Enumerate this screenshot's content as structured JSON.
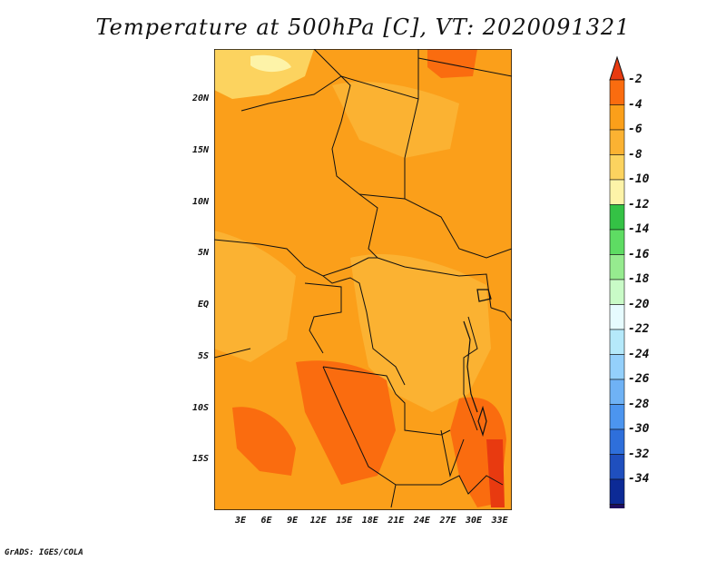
{
  "title": "Temperature at 500hPa [C], VT: 2020091321",
  "footer": "GrADS: IGES/COLA",
  "map": {
    "lat_labels": [
      "20N",
      "15N",
      "10N",
      "5N",
      "EQ",
      "5S",
      "10S",
      "15S"
    ],
    "lon_labels": [
      "3E",
      "6E",
      "9E",
      "12E",
      "15E",
      "18E",
      "21E",
      "24E",
      "27E",
      "30E",
      "33E"
    ],
    "lat_values": [
      20,
      15,
      10,
      5,
      0,
      -5,
      -10,
      -15
    ],
    "lon_values": [
      3,
      6,
      9,
      12,
      15,
      18,
      21,
      24,
      27,
      30,
      33
    ]
  },
  "colorbar": {
    "labels": [
      "-2",
      "-4",
      "-6",
      "-8",
      "-10",
      "-12",
      "-14",
      "-16",
      "-18",
      "-20",
      "-22",
      "-24",
      "-26",
      "-28",
      "-30",
      "-32",
      "-34"
    ],
    "colors": [
      "#e83a10",
      "#fa6c0f",
      "#fb9f1a",
      "#fbb232",
      "#fcd35f",
      "#fdf3a8",
      "#34c245",
      "#5edc63",
      "#96eb8f",
      "#c9fbc7",
      "#e6fbfe",
      "#b5e9fa",
      "#94d0fb",
      "#6fb2f5",
      "#4c95ef",
      "#2e6fdb",
      "#1f4fbe",
      "#0c2a96",
      "#1e0c5f",
      "#d5dbf5"
    ]
  }
}
